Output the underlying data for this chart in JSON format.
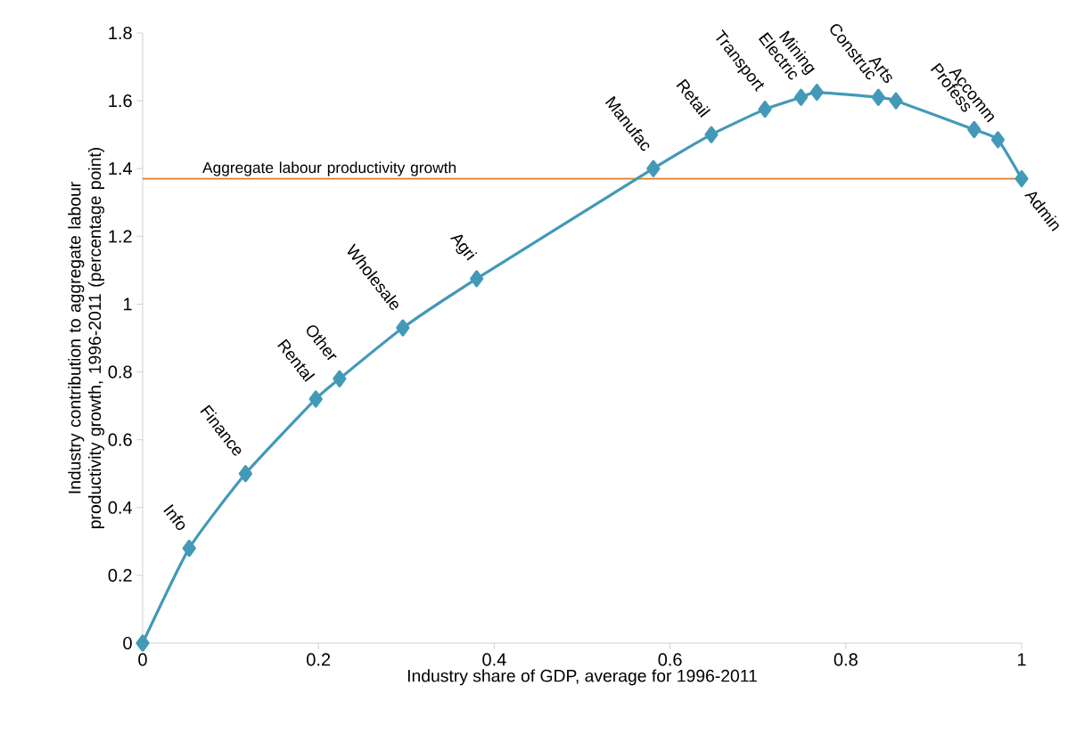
{
  "chart_data": {
    "type": "line",
    "xlabel": "Industry share of GDP, average for 1996-2011",
    "ylabel": "Industry contribution to aggregate labour productivity growth, 1996-2011 (percentage point)",
    "x": [
      0,
      0.053,
      0.117,
      0.197,
      0.224,
      0.296,
      0.38,
      0.581,
      0.647,
      0.708,
      0.749,
      0.767,
      0.837,
      0.857,
      0.946,
      0.973,
      1.0
    ],
    "series": [
      {
        "color": "#4399b8",
        "values": [
          0,
          0.28,
          0.5,
          0.72,
          0.78,
          0.93,
          1.075,
          1.4,
          1.5,
          1.575,
          1.61,
          1.625,
          1.61,
          1.6,
          1.515,
          1.485,
          1.37
        ]
      }
    ],
    "marker": "diamond",
    "line_style": "solid",
    "xlim": [
      0,
      1
    ],
    "xticks": [
      0,
      0.2,
      0.4,
      0.6,
      0.8,
      1
    ],
    "ylim": [
      0,
      1.8
    ],
    "yticks": [
      0,
      0.2,
      0.4,
      0.6,
      0.8,
      1,
      1.2,
      1.4,
      1.6,
      1.8
    ],
    "ref_lines": [
      {
        "axis": "y",
        "value": 1.37,
        "label": "Aggregate labour productivity growth",
        "color": "#e07b2a"
      }
    ],
    "annotations": [
      {
        "text": "Info",
        "x": 0.053,
        "y": 0.28
      },
      {
        "text": "Finance",
        "x": 0.117,
        "y": 0.5
      },
      {
        "text": "Rental",
        "x": 0.197,
        "y": 0.72
      },
      {
        "text": "Other",
        "x": 0.224,
        "y": 0.78
      },
      {
        "text": "Wholesale",
        "x": 0.296,
        "y": 0.93
      },
      {
        "text": "Agri",
        "x": 0.38,
        "y": 1.075
      },
      {
        "text": "Manufac",
        "x": 0.581,
        "y": 1.4
      },
      {
        "text": "Retail",
        "x": 0.647,
        "y": 1.5
      },
      {
        "text": "Transport",
        "x": 0.708,
        "y": 1.575
      },
      {
        "text": "Electric",
        "x": 0.749,
        "y": 1.61
      },
      {
        "text": "Mining",
        "x": 0.767,
        "y": 1.625
      },
      {
        "text": "Construc",
        "x": 0.837,
        "y": 1.61
      },
      {
        "text": "Arts",
        "x": 0.857,
        "y": 1.6
      },
      {
        "text": "Profess",
        "x": 0.946,
        "y": 1.515
      },
      {
        "text": "Accomm",
        "x": 0.973,
        "y": 1.485
      },
      {
        "text": "Admin",
        "x": 1.0,
        "y": 1.37
      }
    ]
  }
}
